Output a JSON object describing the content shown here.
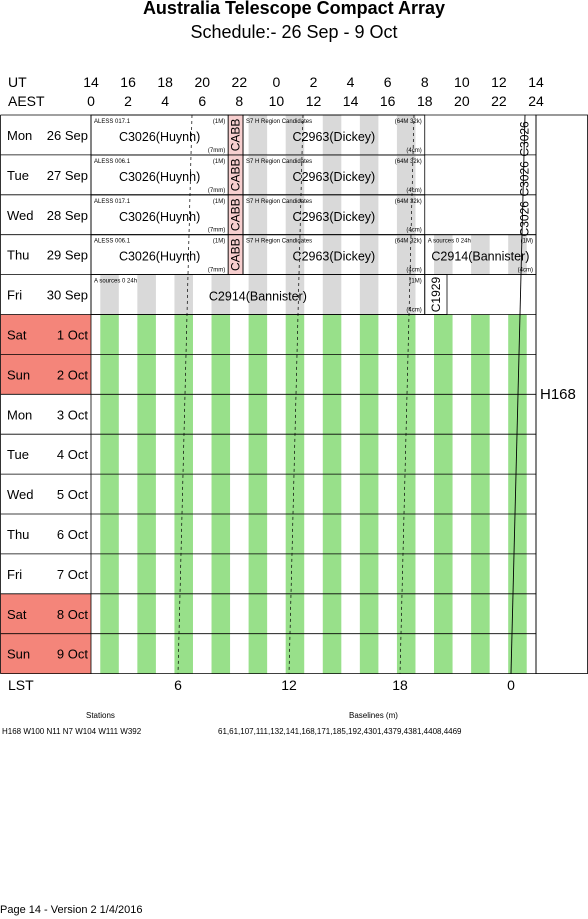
{
  "header": {
    "title": "Australia Telescope Compact Array",
    "subtitle": "Schedule:- 26 Sep - 9  Oct"
  },
  "axes": {
    "ut_label": "UT",
    "aest_label": "AEST",
    "lst_label": "LST",
    "ut_ticks": [
      "14",
      "16",
      "18",
      "20",
      "22",
      "0",
      "2",
      "4",
      "6",
      "8",
      "10",
      "12",
      "14"
    ],
    "aest_ticks": [
      "0",
      "2",
      "4",
      "6",
      "8",
      "10",
      "12",
      "14",
      "16",
      "18",
      "20",
      "22",
      "24"
    ],
    "lst_ticks": [
      "6",
      "12",
      "18",
      "0"
    ]
  },
  "days": [
    {
      "name": "Mon",
      "date": "26 Sep",
      "weekend": false
    },
    {
      "name": "Tue",
      "date": "27 Sep",
      "weekend": false
    },
    {
      "name": "Wed",
      "date": "28 Sep",
      "weekend": false
    },
    {
      "name": "Thu",
      "date": "29 Sep",
      "weekend": false
    },
    {
      "name": "Fri",
      "date": "30 Sep",
      "weekend": false
    },
    {
      "name": "Sat",
      "date": "1  Oct",
      "weekend": true
    },
    {
      "name": "Sun",
      "date": "2  Oct",
      "weekend": true
    },
    {
      "name": "Mon",
      "date": "3  Oct",
      "weekend": false
    },
    {
      "name": "Tue",
      "date": "4  Oct",
      "weekend": false
    },
    {
      "name": "Wed",
      "date": "5  Oct",
      "weekend": false
    },
    {
      "name": "Thu",
      "date": "6  Oct",
      "weekend": false
    },
    {
      "name": "Fri",
      "date": "7  Oct",
      "weekend": false
    },
    {
      "name": "Sat",
      "date": "8  Oct",
      "weekend": true
    },
    {
      "name": "Sun",
      "date": "9  Oct",
      "weekend": true
    }
  ],
  "chart_data": {
    "type": "table",
    "x_unit": "AEST hours",
    "x_range": [
      0,
      24
    ],
    "blocks": [
      {
        "day": 0,
        "start": 0,
        "end": 7.4,
        "label": "C3026(Huynh)",
        "note": "ALESS 017.1",
        "tag": "(1M)",
        "tag2": "(7mm)",
        "fill": "white"
      },
      {
        "day": 0,
        "start": 7.4,
        "end": 8.2,
        "label": "CABB",
        "vertical": true,
        "fill": "pink"
      },
      {
        "day": 0,
        "start": 8.2,
        "end": 18.0,
        "label": "C2963(Dickey)",
        "note": "S7 H   Region Candidates",
        "tag": "(64M 32k)",
        "tag2": "(4cm)",
        "fill": "stripes"
      },
      {
        "day": 1,
        "start": 0,
        "end": 7.4,
        "label": "C3026(Huynh)",
        "note": "ALESS 006.1",
        "tag": "(1M)",
        "tag2": "(7mm)",
        "fill": "white"
      },
      {
        "day": 1,
        "start": 7.4,
        "end": 8.2,
        "label": "CABB",
        "vertical": true,
        "fill": "pink"
      },
      {
        "day": 1,
        "start": 8.2,
        "end": 18.0,
        "label": "C2963(Dickey)",
        "note": "S7 H   Region Candidates",
        "tag": "(64M 32k)",
        "tag2": "(4cm)",
        "fill": "stripes"
      },
      {
        "day": 2,
        "start": 0,
        "end": 7.4,
        "label": "C3026(Huynh)",
        "note": "ALESS 017.1",
        "tag": "(1M)",
        "tag2": "(7mm)",
        "fill": "white"
      },
      {
        "day": 2,
        "start": 7.4,
        "end": 8.2,
        "label": "CABB",
        "vertical": true,
        "fill": "pink"
      },
      {
        "day": 2,
        "start": 8.2,
        "end": 18.0,
        "label": "C2963(Dickey)",
        "note": "S7 H   Region Candidates",
        "tag": "(64M 32k)",
        "tag2": "(4cm)",
        "fill": "stripes"
      },
      {
        "day": 3,
        "start": 0,
        "end": 7.4,
        "label": "C3026(Huynh)",
        "note": "ALESS 006.1",
        "tag": "(1M)",
        "tag2": "(7mm)",
        "fill": "white"
      },
      {
        "day": 3,
        "start": 7.4,
        "end": 8.2,
        "label": "CABB",
        "vertical": true,
        "fill": "pink"
      },
      {
        "day": 3,
        "start": 8.2,
        "end": 18.0,
        "label": "C2963(Dickey)",
        "note": "S7 H   Region Candidates",
        "tag": "(64M 32k)",
        "tag2": "(4cm)",
        "fill": "stripes"
      },
      {
        "day": 3,
        "start": 18.0,
        "end": 24,
        "label": "C2914(Bannister)",
        "note": "A   sources 0 24h",
        "tag": "(1M)",
        "tag2": "(4cm)",
        "fill": "stripes"
      },
      {
        "day": 4,
        "start": 0,
        "end": 18.0,
        "label": "C2914(Bannister)",
        "note": "A   sources 0 24h",
        "tag": "(1M)",
        "tag2": "(4cm)",
        "fill": "stripes"
      },
      {
        "day": 4,
        "start": 18.0,
        "end": 19.2,
        "label": "C1929",
        "vertical": true,
        "fill": "white"
      }
    ],
    "vertical_labels_top_right": [
      "C3026",
      "C3026",
      "C3026"
    ],
    "array_config": "H168",
    "stations_label": "Stations",
    "stations": "H168   W100  N11  N7  W104  W111  W392",
    "baselines_label": "Baselines (m)",
    "baselines": "61,61,107,111,132,141,168,171,185,192,4301,4379,4381,4408,4469"
  },
  "footer": "Page 14 - Version 2  1/4/2016"
}
